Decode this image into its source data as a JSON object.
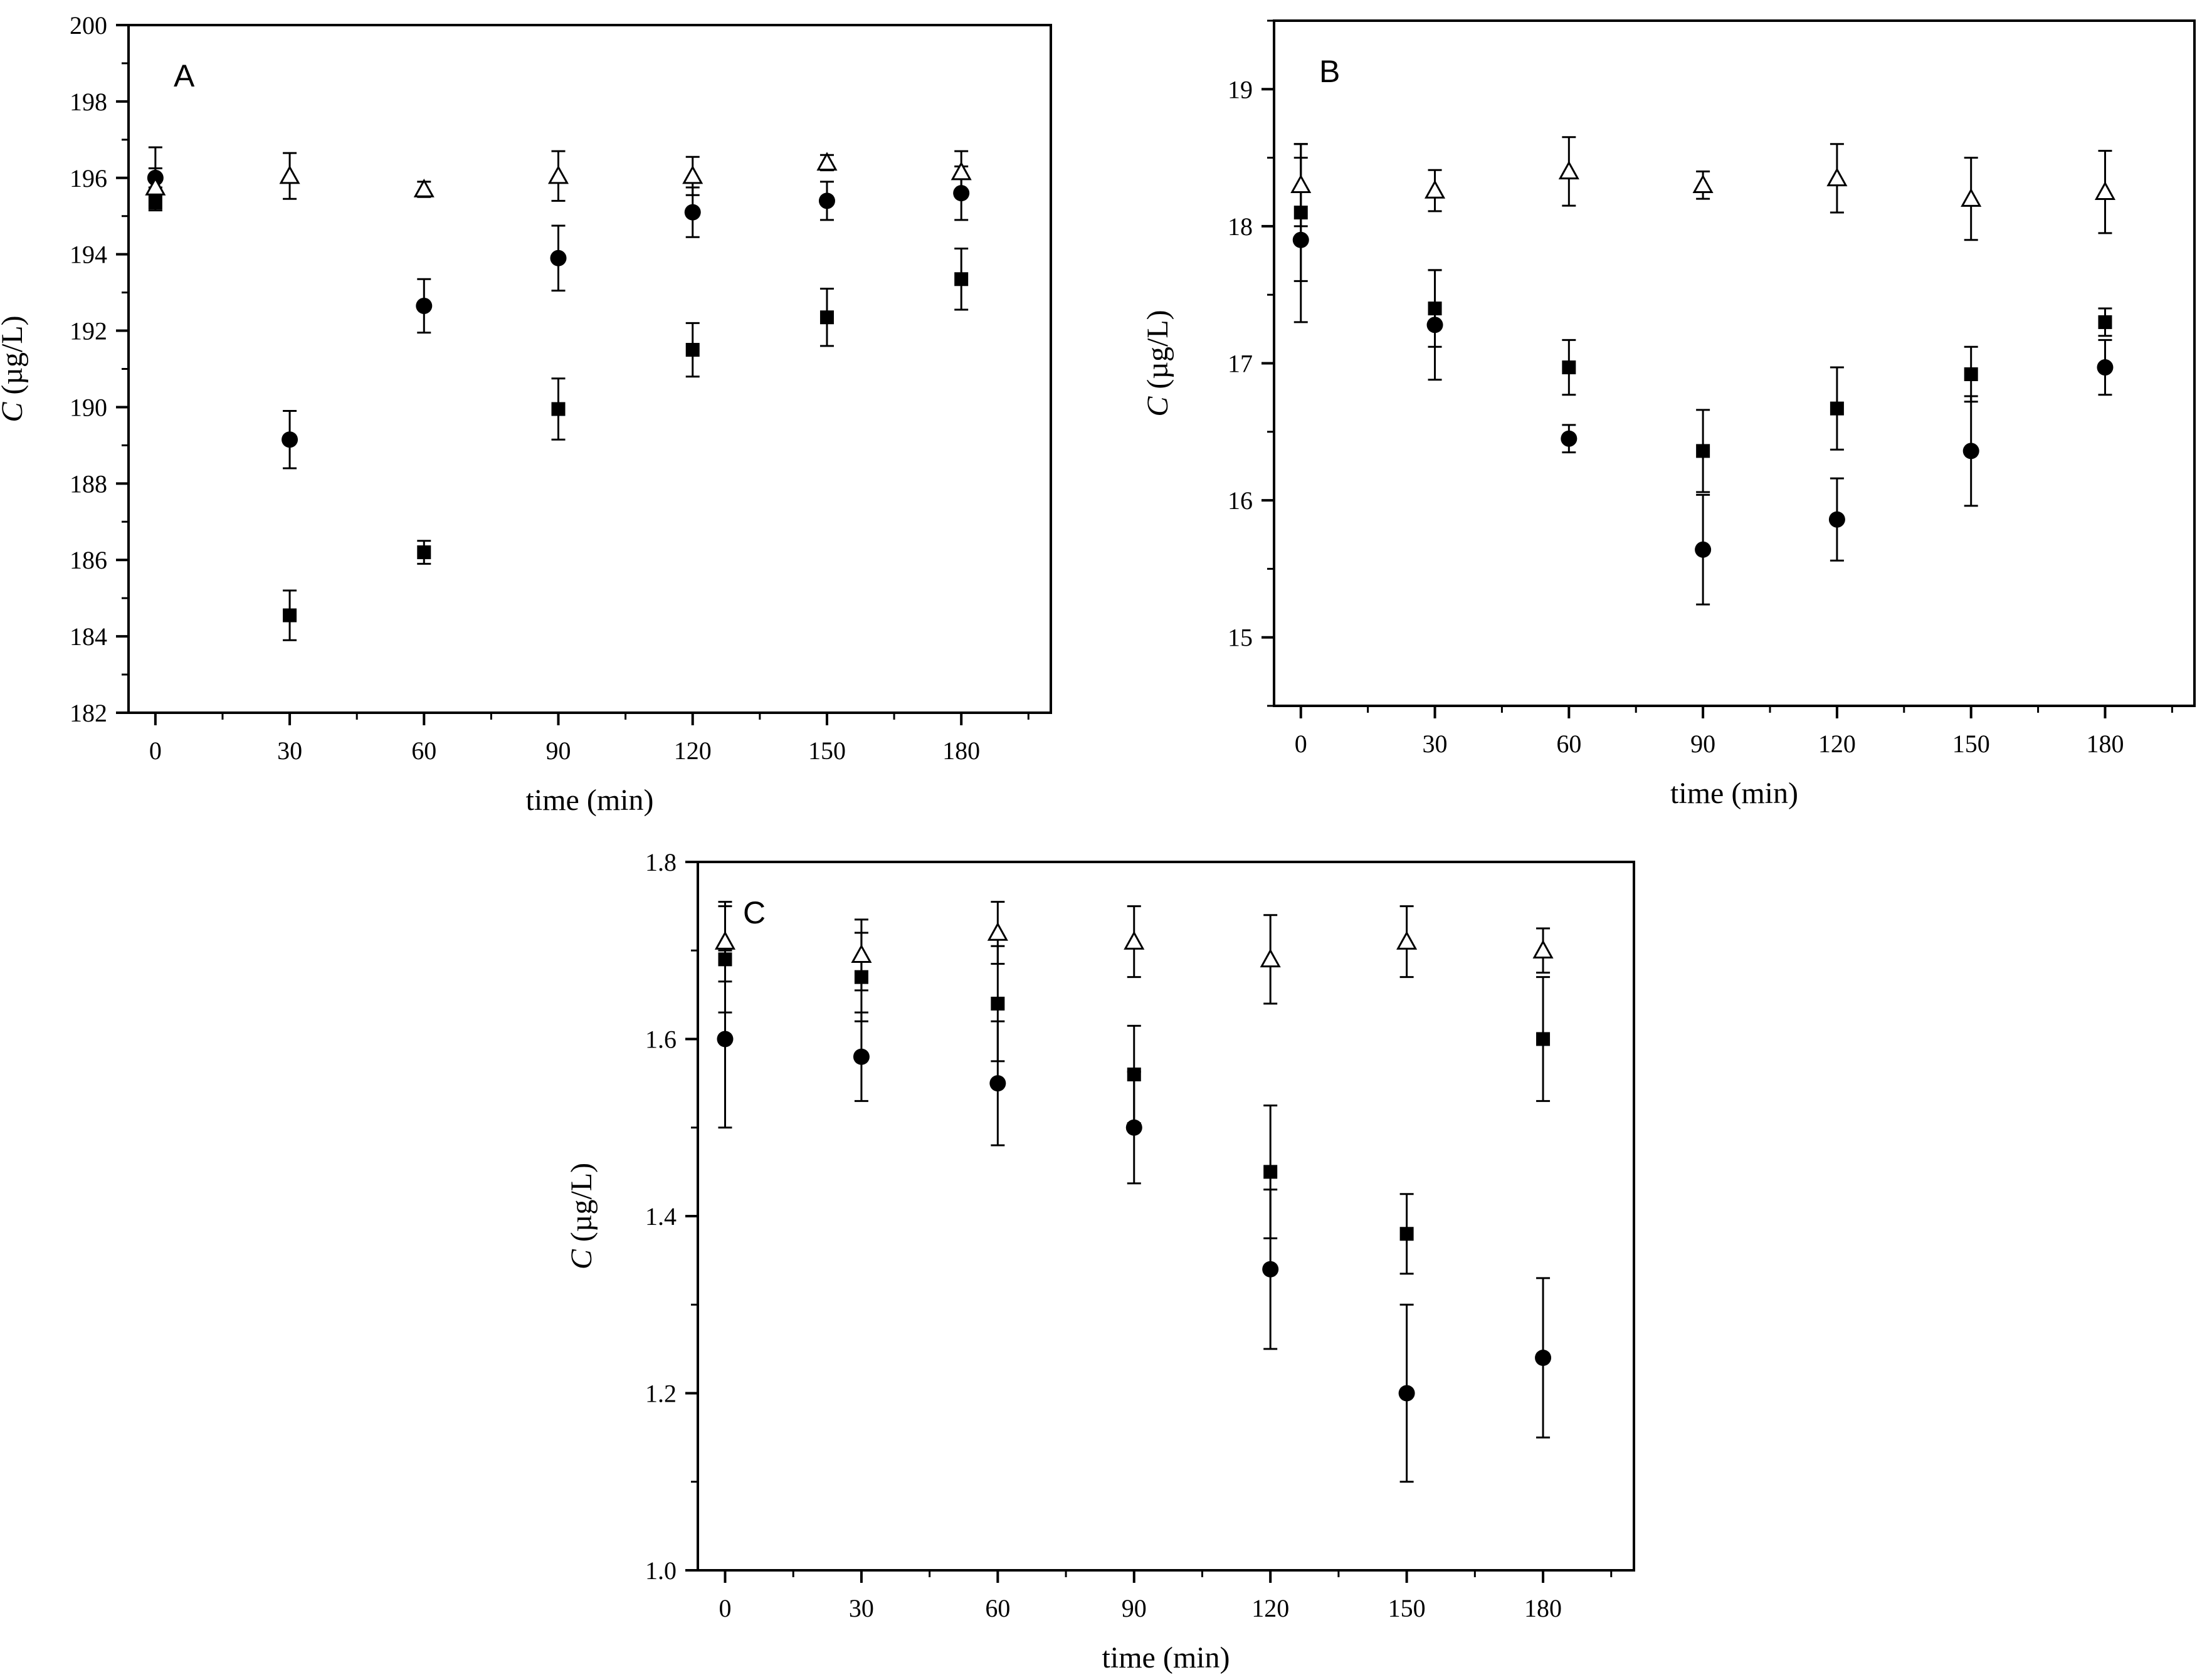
{
  "chart_data": [
    {
      "type": "scatter",
      "panel_label": "A",
      "xlabel": "time (min)",
      "ylabel_italic": "C",
      "ylabel_rest": " (µg/L)",
      "xlim": [
        -6,
        200
      ],
      "ylim": [
        182,
        200
      ],
      "x_ticks": [
        0,
        30,
        60,
        90,
        120,
        150,
        180
      ],
      "y_ticks": [
        182,
        184,
        186,
        188,
        190,
        192,
        194,
        196,
        198,
        200
      ],
      "series": [
        {
          "marker": "square",
          "points": [
            {
              "x": 0,
              "y": 195.45,
              "err": 0.3
            },
            {
              "x": 30,
              "y": 184.55,
              "err": 0.65
            },
            {
              "x": 60,
              "y": 186.2,
              "err": 0.3
            },
            {
              "x": 90,
              "y": 189.95,
              "err": 0.8
            },
            {
              "x": 120,
              "y": 191.5,
              "err": 0.7
            },
            {
              "x": 150,
              "y": 192.35,
              "err": 0.75
            },
            {
              "x": 180,
              "y": 193.35,
              "err": 0.8
            }
          ]
        },
        {
          "marker": "circle",
          "points": [
            {
              "x": 0,
              "y": 196.0,
              "err": 0.8
            },
            {
              "x": 30,
              "y": 189.15,
              "err": 0.75
            },
            {
              "x": 60,
              "y": 192.65,
              "err": 0.7
            },
            {
              "x": 90,
              "y": 193.9,
              "err": 0.85
            },
            {
              "x": 120,
              "y": 195.1,
              "err": 0.65
            },
            {
              "x": 150,
              "y": 195.4,
              "err": 0.5
            },
            {
              "x": 180,
              "y": 195.6,
              "err": 0.7
            }
          ]
        },
        {
          "marker": "triangle-open",
          "points": [
            {
              "x": 0,
              "y": 195.75,
              "err": 0.5
            },
            {
              "x": 30,
              "y": 196.05,
              "err": 0.6
            },
            {
              "x": 60,
              "y": 195.7,
              "err": 0.2
            },
            {
              "x": 90,
              "y": 196.05,
              "err": 0.65
            },
            {
              "x": 120,
              "y": 196.05,
              "err": 0.5
            },
            {
              "x": 150,
              "y": 196.4,
              "err": 0.2
            },
            {
              "x": 180,
              "y": 196.15,
              "err": 0.55
            }
          ]
        }
      ]
    },
    {
      "type": "scatter",
      "panel_label": "B",
      "xlabel": "time (min)",
      "ylabel_italic": "C",
      "ylabel_rest": " (µg/L)",
      "xlim": [
        -6,
        200
      ],
      "ylim": [
        14.5,
        19.5
      ],
      "x_ticks": [
        0,
        30,
        60,
        90,
        120,
        150,
        180
      ],
      "y_ticks": [
        15,
        16,
        17,
        18,
        19
      ],
      "series": [
        {
          "marker": "square",
          "points": [
            {
              "x": 0,
              "y": 18.1,
              "err": 0.5
            },
            {
              "x": 30,
              "y": 17.4,
              "err": 0.28
            },
            {
              "x": 60,
              "y": 16.97,
              "err": 0.2
            },
            {
              "x": 90,
              "y": 16.36,
              "err": 0.3
            },
            {
              "x": 120,
              "y": 16.67,
              "err": 0.3
            },
            {
              "x": 150,
              "y": 16.92,
              "err": 0.2
            },
            {
              "x": 180,
              "y": 17.3,
              "err": 0.1
            }
          ]
        },
        {
          "marker": "circle",
          "points": [
            {
              "x": 0,
              "y": 17.9,
              "err": 0.6
            },
            {
              "x": 30,
              "y": 17.28,
              "err": 0.4
            },
            {
              "x": 60,
              "y": 16.45,
              "err": 0.1
            },
            {
              "x": 90,
              "y": 15.64,
              "err": 0.4
            },
            {
              "x": 120,
              "y": 15.86,
              "err": 0.3
            },
            {
              "x": 150,
              "y": 16.36,
              "err": 0.4
            },
            {
              "x": 180,
              "y": 16.97,
              "err": 0.2
            }
          ]
        },
        {
          "marker": "triangle-open",
          "points": [
            {
              "x": 0,
              "y": 18.3,
              "err": 0.3
            },
            {
              "x": 30,
              "y": 18.26,
              "err": 0.15
            },
            {
              "x": 60,
              "y": 18.4,
              "err": 0.25
            },
            {
              "x": 90,
              "y": 18.3,
              "err": 0.1
            },
            {
              "x": 120,
              "y": 18.35,
              "err": 0.25
            },
            {
              "x": 150,
              "y": 18.2,
              "err": 0.3
            },
            {
              "x": 180,
              "y": 18.25,
              "err": 0.3
            }
          ]
        }
      ]
    },
    {
      "type": "scatter",
      "panel_label": "C",
      "xlabel": "time (min)",
      "ylabel_italic": "C",
      "ylabel_rest": " (µg/L)",
      "xlim": [
        -6,
        200
      ],
      "ylim": [
        1.0,
        1.8
      ],
      "x_ticks": [
        0,
        30,
        60,
        90,
        120,
        150,
        180
      ],
      "y_ticks": [
        1.0,
        1.2,
        1.4,
        1.6,
        1.8
      ],
      "series": [
        {
          "marker": "square",
          "points": [
            {
              "x": 0,
              "y": 1.69,
              "err": 0.06
            },
            {
              "x": 30,
              "y": 1.67,
              "err": 0.05
            },
            {
              "x": 60,
              "y": 1.64,
              "err": 0.065
            },
            {
              "x": 90,
              "y": 1.56,
              "err": 0.055
            },
            {
              "x": 120,
              "y": 1.45,
              "err": 0.075
            },
            {
              "x": 150,
              "y": 1.38,
              "err": 0.045
            },
            {
              "x": 180,
              "y": 1.6,
              "err": 0.07
            }
          ]
        },
        {
          "marker": "circle",
          "points": [
            {
              "x": 0,
              "y": 1.6,
              "err": 0.1
            },
            {
              "x": 30,
              "y": 1.58,
              "err": 0.05
            },
            {
              "x": 60,
              "y": 1.55,
              "err": 0.07
            },
            {
              "x": 90,
              "y": 1.5,
              "err": 0.063
            },
            {
              "x": 120,
              "y": 1.34,
              "err": 0.09
            },
            {
              "x": 150,
              "y": 1.2,
              "err": 0.1
            },
            {
              "x": 180,
              "y": 1.24,
              "err": 0.09
            }
          ]
        },
        {
          "marker": "triangle-open",
          "points": [
            {
              "x": 0,
              "y": 1.71,
              "err": 0.045
            },
            {
              "x": 30,
              "y": 1.695,
              "err": 0.04
            },
            {
              "x": 60,
              "y": 1.72,
              "err": 0.035
            },
            {
              "x": 90,
              "y": 1.71,
              "err": 0.04
            },
            {
              "x": 120,
              "y": 1.69,
              "err": 0.05
            },
            {
              "x": 150,
              "y": 1.71,
              "err": 0.04
            },
            {
              "x": 180,
              "y": 1.7,
              "err": 0.025
            }
          ]
        }
      ]
    }
  ]
}
